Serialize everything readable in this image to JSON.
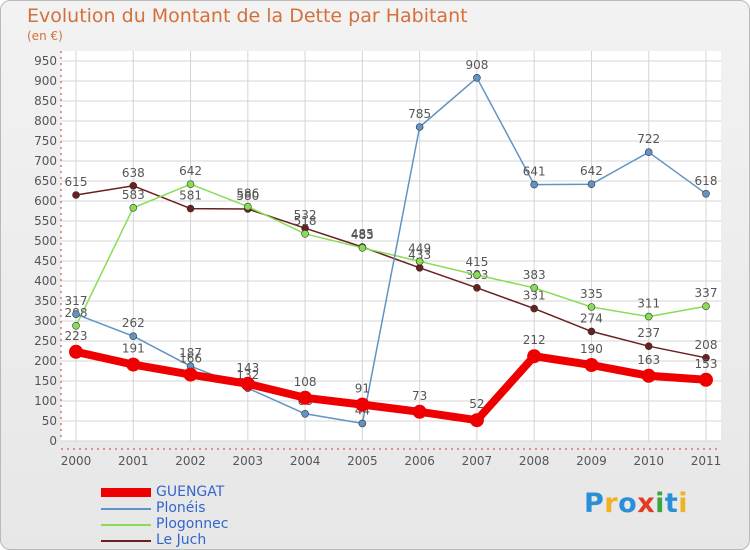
{
  "title": "Evolution du Montant de la Dette par Habitant",
  "subtitle": "(en €)",
  "logo": [
    "P",
    "r",
    "o",
    "x",
    "i",
    "t",
    "i"
  ],
  "chart_data": {
    "type": "line",
    "title": "Evolution du Montant de la Dette par Habitant",
    "ylabel": "(en €)",
    "xlabel": "",
    "ylim": [
      0,
      950
    ],
    "yticks": [
      0,
      50,
      100,
      150,
      200,
      250,
      300,
      350,
      400,
      450,
      500,
      550,
      600,
      650,
      700,
      750,
      800,
      850,
      900,
      950
    ],
    "categories": [
      "2000",
      "2001",
      "2002",
      "2003",
      "2004",
      "2005",
      "2006",
      "2007",
      "2008",
      "2009",
      "2010",
      "2011"
    ],
    "series": [
      {
        "name": "Le Juch",
        "color": "#6b1f1f",
        "values": [
          615,
          638,
          581,
          580,
          532,
          485,
          433,
          383,
          331,
          274,
          237,
          208
        ]
      },
      {
        "name": "Plogonnec",
        "color": "#88dd55",
        "values": [
          288,
          583,
          642,
          586,
          518,
          483,
          449,
          415,
          383,
          335,
          311,
          337
        ]
      },
      {
        "name": "Plonéis",
        "color": "#5f94c4",
        "values": [
          317,
          262,
          187,
          132,
          68,
          44,
          785,
          908,
          641,
          642,
          722,
          618
        ]
      },
      {
        "name": "GUENGAT",
        "color": "#ee0000",
        "values": [
          223,
          191,
          166,
          143,
          108,
          91,
          73,
          52,
          212,
          190,
          163,
          153
        ]
      }
    ],
    "legend": [
      "GUENGAT",
      "Plonéis",
      "Plogonnec",
      "Le Juch"
    ],
    "legend_position": "bottom-left",
    "grid": true
  }
}
